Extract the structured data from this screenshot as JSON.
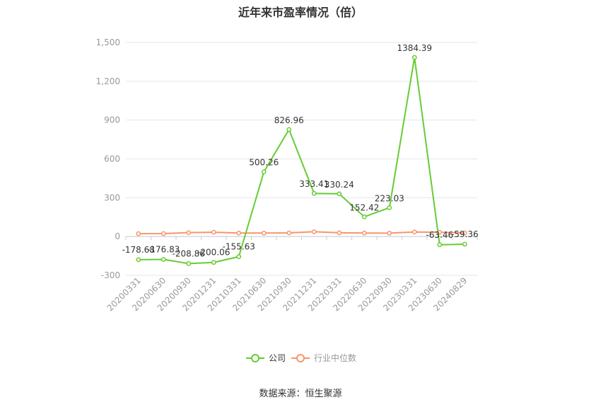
{
  "title": "近年来市盈率情况（倍）",
  "source": "数据来源：恒生聚源",
  "colors": {
    "company": "#66cc33",
    "industry": "#f7956a",
    "grid": "#e6e6e6",
    "axis": "#999999",
    "label": "#333333"
  },
  "chart_data": {
    "type": "line",
    "title": "近年来市盈率情况（倍）",
    "categories": [
      "20200331",
      "20200630",
      "20200930",
      "20201231",
      "20210331",
      "20210630",
      "20210930",
      "20211231",
      "20220331",
      "20220630",
      "20220930",
      "20230331",
      "20230630",
      "20240829"
    ],
    "ylim": [
      -300,
      1500
    ],
    "yticks": [
      -300,
      0,
      300,
      600,
      900,
      1200,
      1500
    ],
    "ytick_labels": [
      "-300",
      "0",
      "300",
      "600",
      "900",
      "1,200",
      "1,500"
    ],
    "grid": true,
    "legend_position": "bottom",
    "series": [
      {
        "name": "公司",
        "values": [
          -178.68,
          -176.83,
          -208.86,
          -200.06,
          -155.63,
          500.26,
          826.96,
          333.41,
          330.24,
          152.42,
          223.03,
          1384.39,
          -63.46,
          -59.36
        ],
        "labels": [
          "-178.68",
          "-176.83",
          "-208.86",
          "-200.06",
          "-155.63",
          "500.26",
          "826.96",
          "333.41",
          "330.24",
          "152.42",
          "223.03",
          "1384.39",
          "-63.46",
          "-59.36"
        ]
      },
      {
        "name": "行业中位数",
        "values": [
          22,
          23,
          30,
          33,
          27,
          27,
          28,
          37,
          29,
          27,
          26,
          35,
          33,
          28
        ]
      }
    ]
  }
}
